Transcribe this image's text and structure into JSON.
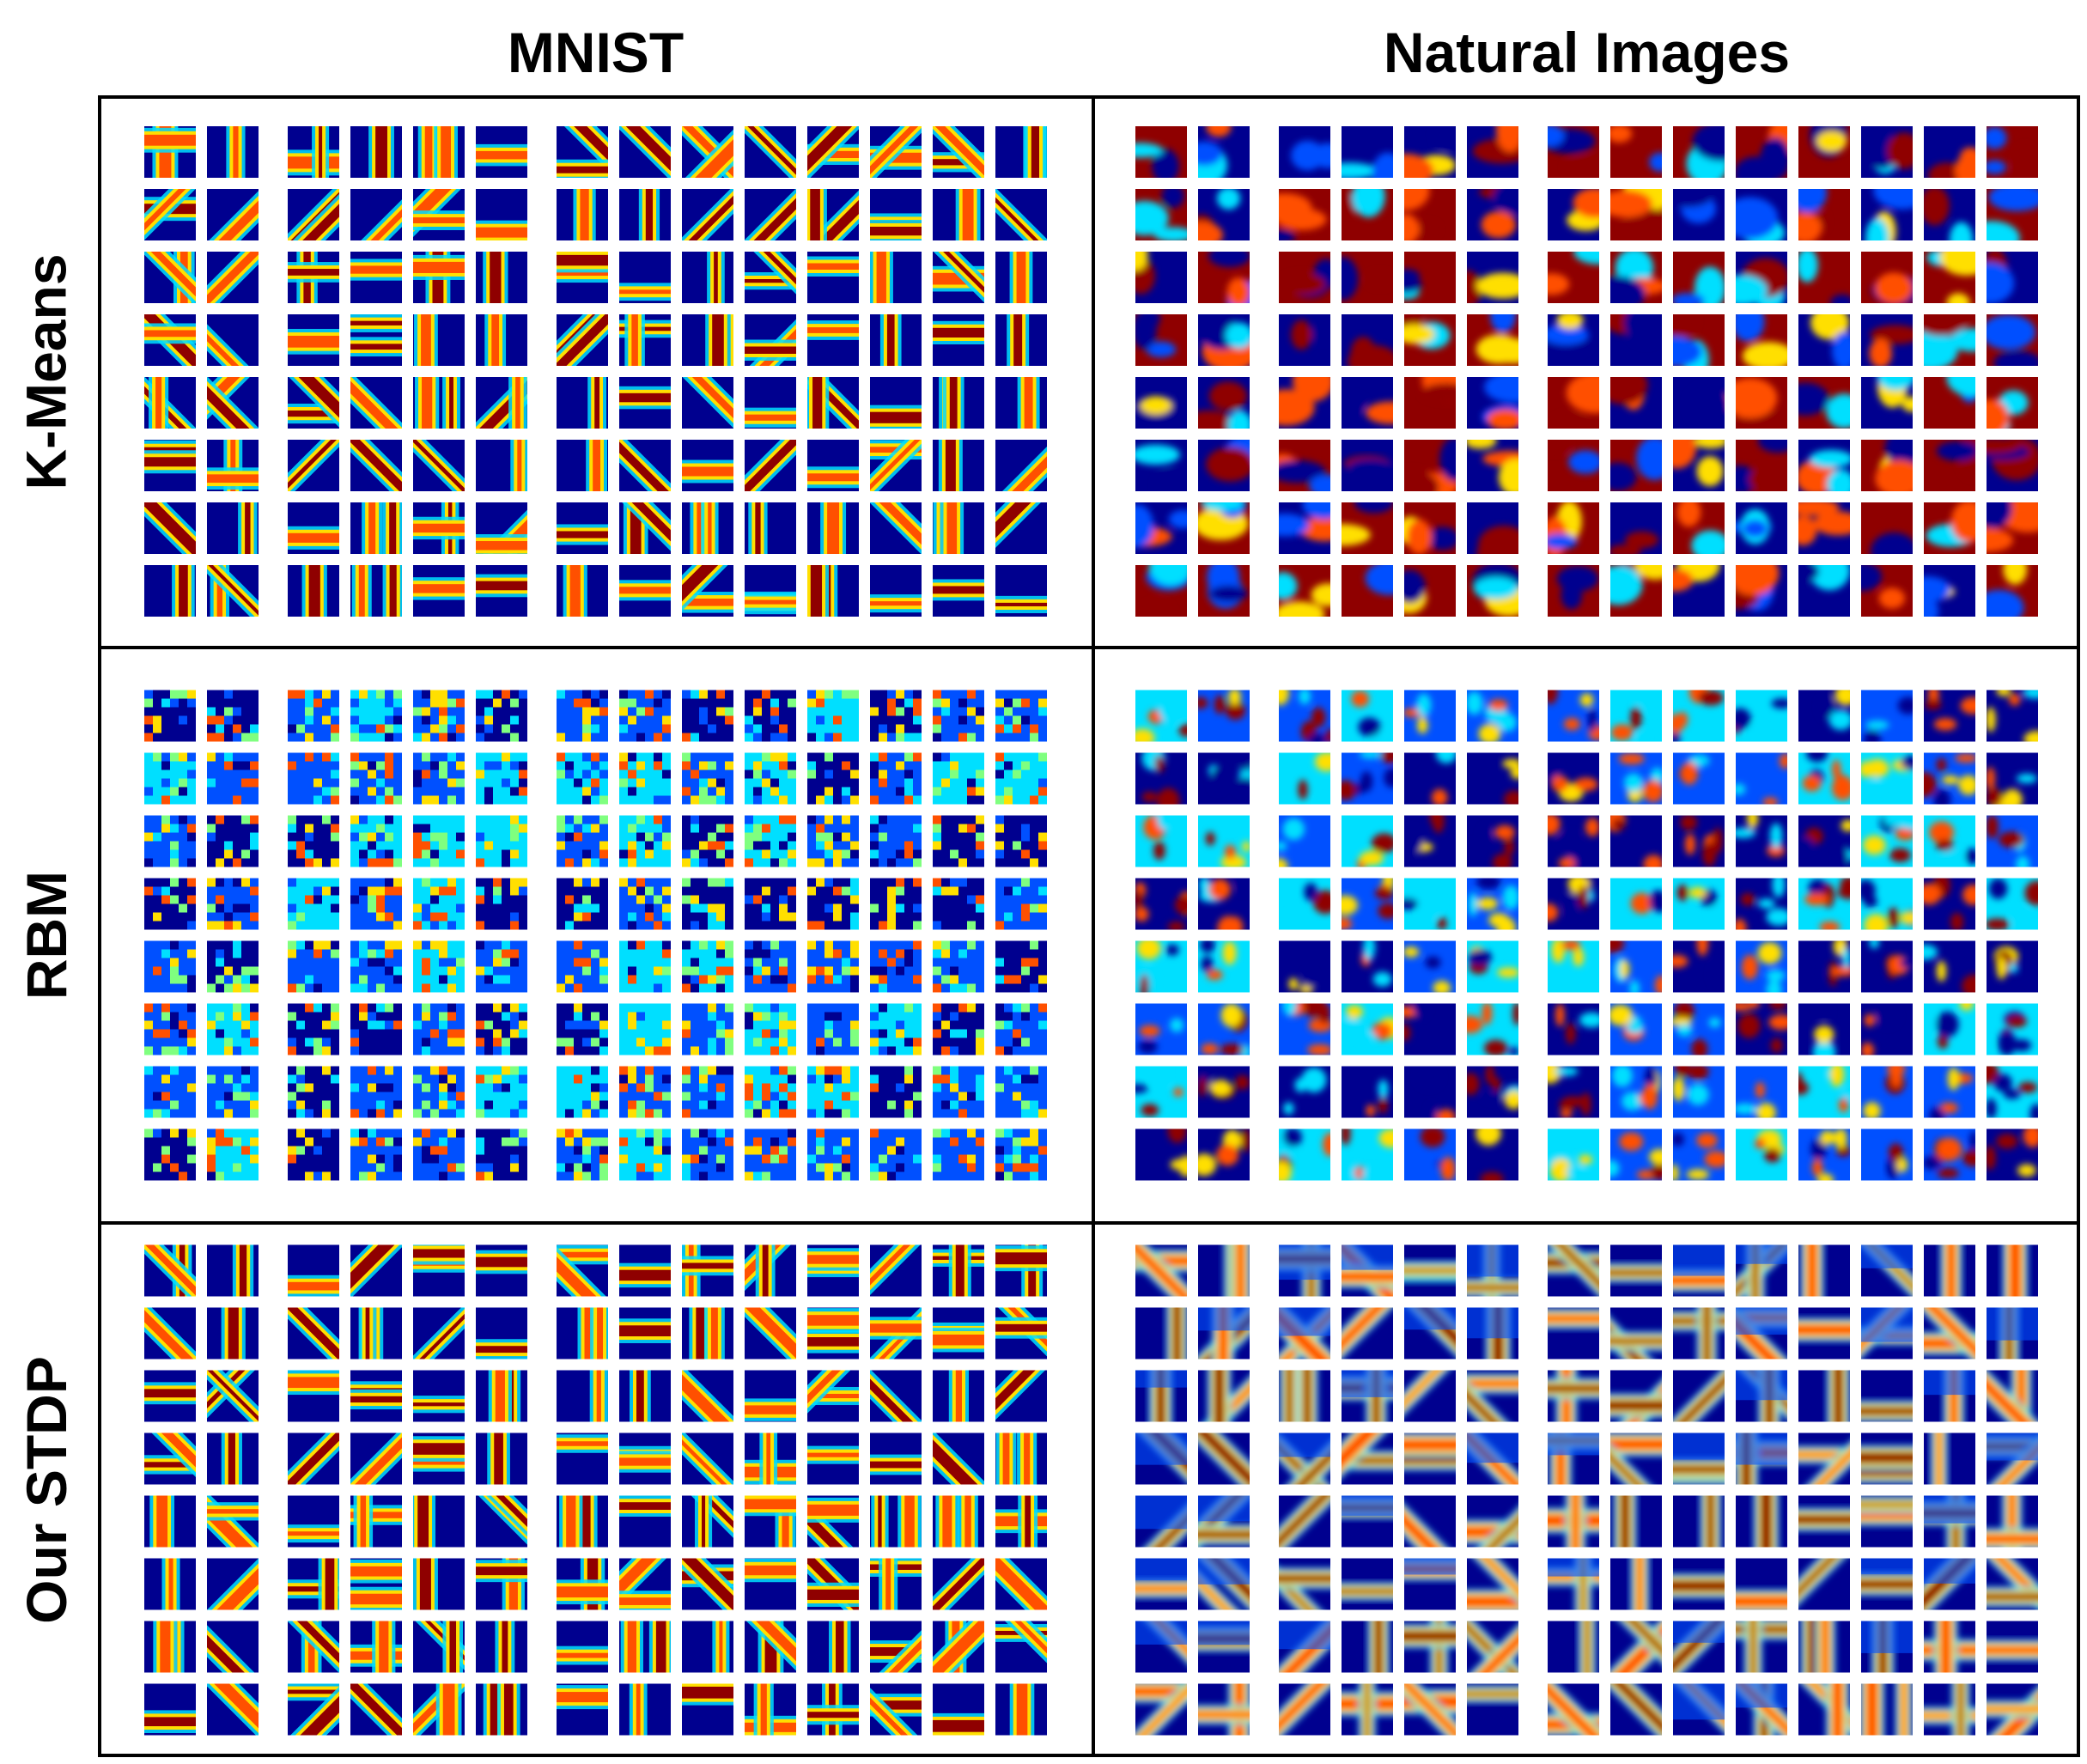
{
  "columns": [
    "MNIST",
    "Natural Images"
  ],
  "rows": [
    "K-Means",
    "RBM",
    "Our STDP"
  ],
  "grid": {
    "group_columns": [
      2,
      4,
      8
    ],
    "tile_rows": 8
  },
  "colormap": [
    "#00008f",
    "#0050ff",
    "#00dfff",
    "#7fff7f",
    "#ffdf00",
    "#ff5000",
    "#8f0000"
  ],
  "panel_styles": {
    "K-Means": {
      "MNIST": "bars",
      "Natural Images": "smooth"
    },
    "RBM": {
      "MNIST": "blotch",
      "Natural Images": "speckle"
    },
    "Our STDP": {
      "MNIST": "bars",
      "Natural Images": "edges"
    }
  }
}
